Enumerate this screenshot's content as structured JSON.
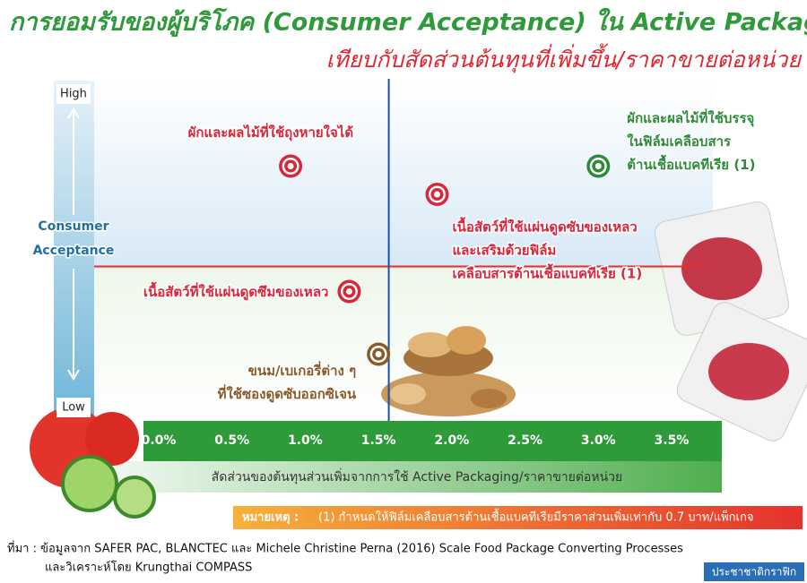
{
  "title": "การยอมรับของผู้บริโภค (Consumer Acceptance) ใน Active Packaging",
  "subtitle": "เทียบกับสัดส่วนต้นทุนที่เพิ่มขึ้น/ราคาขายต่อหน่วย",
  "chart_data": {
    "type": "scatter",
    "y_label": [
      "Consumer",
      "Acceptance"
    ],
    "x_label": "สัดส่วนของต้นทุนส่วนเพิ่มจากการใช้ Active Packaging/ราคาขายต่อหน่วย",
    "xlim": [
      0,
      3.5
    ],
    "xticks": [
      {
        "value": 0,
        "label": "0.0%"
      },
      {
        "value": 0.5,
        "label": "0.5%"
      },
      {
        "value": 1,
        "label": "1.0%"
      },
      {
        "value": 1.5,
        "label": "1.5%"
      },
      {
        "value": 2,
        "label": "2.0%"
      },
      {
        "value": 2.5,
        "label": "2.5%"
      },
      {
        "value": 3,
        "label": "3.0%"
      },
      {
        "value": 3.5,
        "label": "3.5%"
      }
    ],
    "ylim": [
      0,
      1
    ],
    "yticks": [
      {
        "value": 0,
        "label": "Low"
      },
      {
        "value": 1,
        "label": "High"
      }
    ],
    "reference_lines": {
      "x": 1.57,
      "y": 0.45
    },
    "points": [
      {
        "label": [
          "ผักและผลไม้ที่ใช้ถุงหายใจได้"
        ],
        "color": "#d9263a",
        "x": 0.9,
        "y": 0.77
      },
      {
        "label": [
          "ผักและผลไม้ที่ใช้บรรจุ",
          "ในฟิล์มเคลือบสาร",
          "ต้านเชื้อแบคทีเรีย (1)"
        ],
        "color": "#2e8b3a",
        "x": 3.0,
        "y": 0.77
      },
      {
        "label": [
          "เนื้อสัตว์ที่ใช้แผ่นดูดซับของเหลว",
          "และเสริมด้วยฟิล์ม",
          "เคลือบสารต้านเชื้อแบคทีเรีย (1)"
        ],
        "color": "#d9263a",
        "x": 1.9,
        "y": 0.68
      },
      {
        "label": [
          "เนื้อสัตว์ที่ใช้แผ่นดูดซึมของเหลว"
        ],
        "color": "#d9263a",
        "x": 1.3,
        "y": 0.37
      },
      {
        "label": [
          "ขนม/เบเกอรี่ต่าง ๆ",
          "ที่ใช้ซองดูดซับออกซิเจน"
        ],
        "color": "#8b5a2b",
        "x": 1.5,
        "y": 0.17
      }
    ]
  },
  "note": {
    "heading": "หมายเหตุ :",
    "text": "(1) กำหนดให้ฟิล์มเคลือบสารต้านเชื้อแบคทีเรียมีราคาส่วนเพิ่มเท่ากับ 0.7 บาท/แพ็กเกจ"
  },
  "source": [
    "ที่มา : ข้อมูลจาก SAFER PAC, BLANCTEC และ Michele Christine Perna (2016) Scale Food Package Converting Processes",
    "และวิเคราะห์โดย Krungthai COMPASS"
  ],
  "credit": "ประชาชาติกราฟิก"
}
